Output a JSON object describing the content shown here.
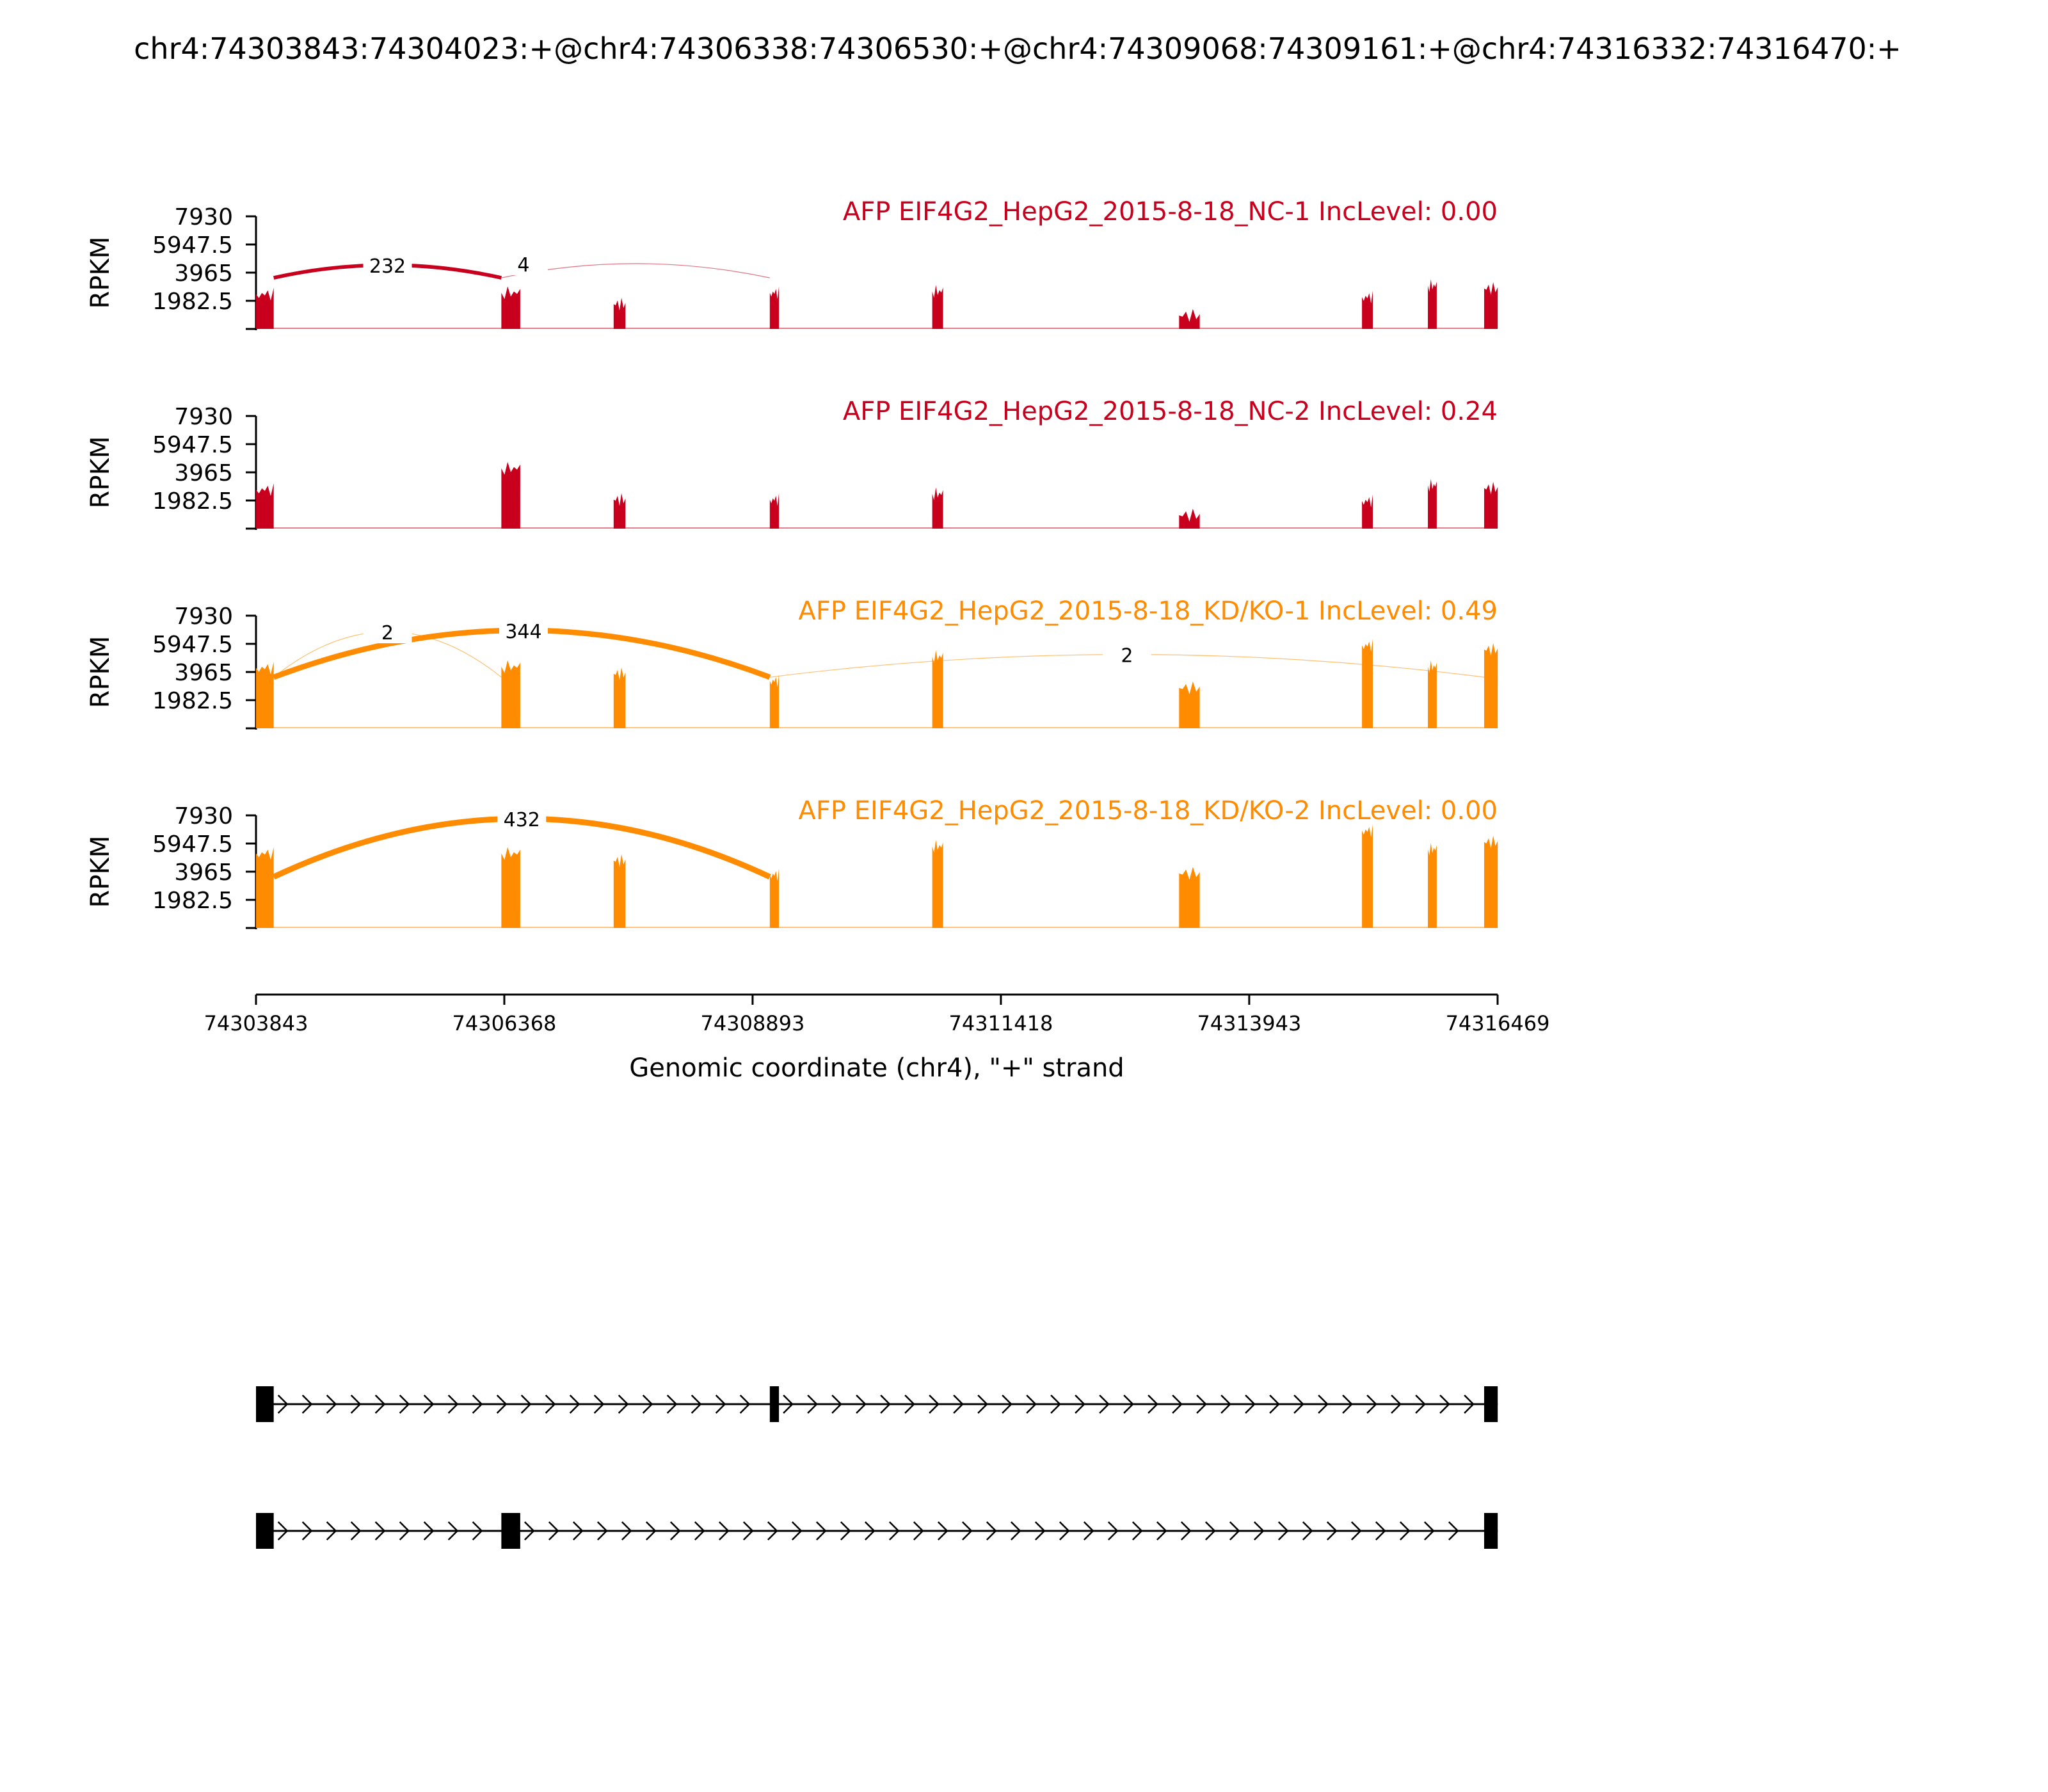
{
  "title": "chr4:74303843:74304023:+@chr4:74306338:74306530:+@chr4:74309068:74309161:+@chr4:74316332:74316470:+",
  "chart_data": {
    "type": "area",
    "xlabel": "Genomic coordinate (chr4), \"+\" strand",
    "ylabel": "RPKM",
    "x_range": [
      74303843,
      74316469
    ],
    "x_ticks": [
      "74303843",
      "74306368",
      "74308893",
      "74311418",
      "74313943",
      "74316469"
    ],
    "ylim": [
      0,
      7930
    ],
    "y_ticks": [
      "1982.5",
      "3965",
      "5947.5",
      "7930"
    ],
    "colors": {
      "NC": "#c8001e",
      "KD": "#ff8c00"
    },
    "exons": [
      {
        "start": 74303843,
        "end": 74304023
      },
      {
        "start": 74306338,
        "end": 74306530
      },
      {
        "start": 74307480,
        "end": 74307600
      },
      {
        "start": 74309068,
        "end": 74309161
      },
      {
        "start": 74310720,
        "end": 74310830
      },
      {
        "start": 74313230,
        "end": 74313440
      },
      {
        "start": 74315090,
        "end": 74315200
      },
      {
        "start": 74315760,
        "end": 74315850
      },
      {
        "start": 74316332,
        "end": 74316470
      }
    ],
    "panels": [
      {
        "label": "AFP EIF4G2_HepG2_2015-8-18_NC-1 IncLevel: 0.00",
        "group": "NC",
        "exon_heights": [
          2900,
          3000,
          2200,
          3000,
          3100,
          1400,
          2700,
          3500,
          3300
        ],
        "junctions": [
          {
            "start": 74304023,
            "end": 74306338,
            "count": "232",
            "peak": 4500
          },
          {
            "start": 74306338,
            "end": 74309068,
            "count": "4",
            "peak": 4600
          }
        ]
      },
      {
        "label": "AFP EIF4G2_HepG2_2015-8-18_NC-2 IncLevel: 0.24",
        "group": "NC",
        "exon_heights": [
          3200,
          4700,
          2500,
          2500,
          2900,
          1400,
          2400,
          3500,
          3300
        ],
        "junctions": []
      },
      {
        "label": "AFP EIF4G2_HepG2_2015-8-18_KD/KO-1 IncLevel: 0.49",
        "group": "KD",
        "exon_heights": [
          4700,
          4800,
          4300,
          3800,
          5500,
          3300,
          6300,
          4800,
          6000
        ],
        "junctions": [
          {
            "start": 74304023,
            "end": 74306338,
            "count": "2",
            "peak": 6800
          },
          {
            "start": 74304023,
            "end": 74309068,
            "count": "344",
            "peak": 6900
          },
          {
            "start": 74309068,
            "end": 74316332,
            "count": "2",
            "peak": 5200
          }
        ]
      },
      {
        "label": "AFP EIF4G2_HepG2_2015-8-18_KD/KO-2 IncLevel: 0.00",
        "group": "KD",
        "exon_heights": [
          5700,
          5700,
          5200,
          4200,
          6200,
          4300,
          7300,
          6000,
          6500
        ],
        "junctions": [
          {
            "start": 74304023,
            "end": 74309068,
            "count": "432",
            "peak": 7700
          }
        ]
      }
    ],
    "isoforms": [
      {
        "exons": [
          [
            74303843,
            74304023
          ],
          [
            74309068,
            74309161
          ],
          [
            74316332,
            74316470
          ]
        ]
      },
      {
        "exons": [
          [
            74303843,
            74304023
          ],
          [
            74306338,
            74306530
          ],
          [
            74316332,
            74316470
          ]
        ]
      }
    ]
  }
}
